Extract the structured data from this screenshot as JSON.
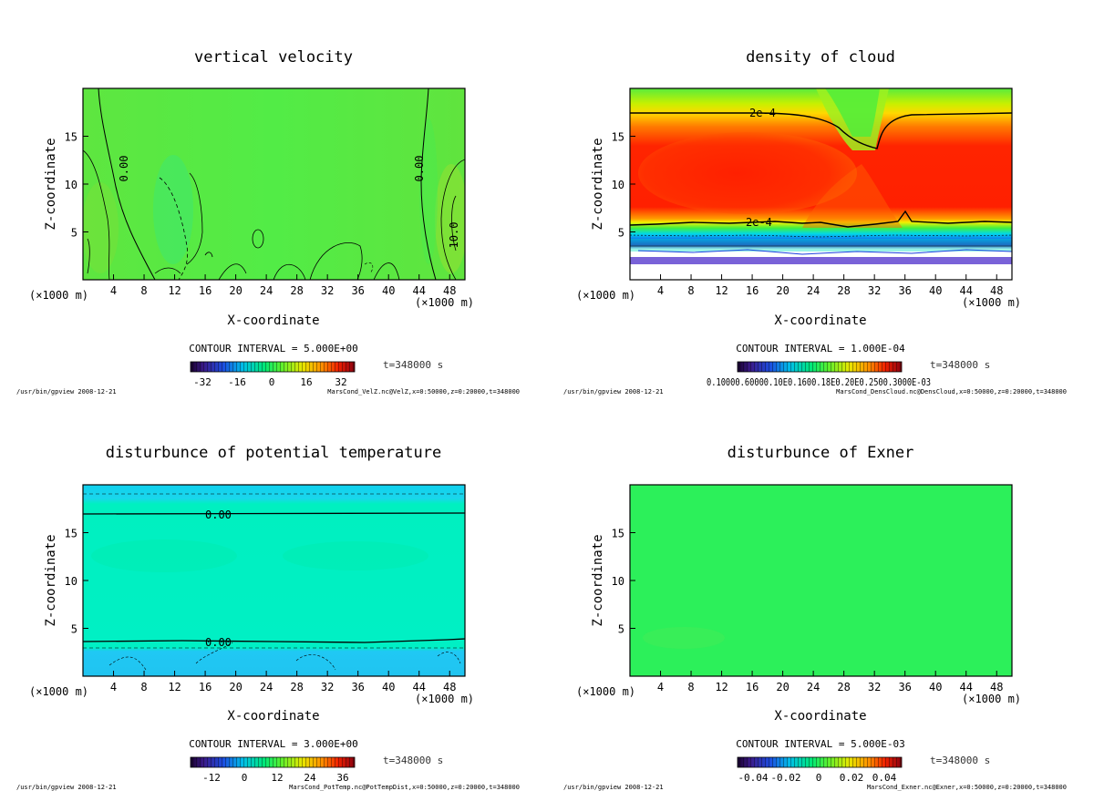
{
  "chart_data": [
    {
      "type": "heatmap",
      "id": "velz",
      "title": "vertical velocity",
      "xlabel": "X-coordinate",
      "ylabel": "Z-coordinate",
      "xunit": "(×1000 m)",
      "xlim": [
        0,
        50
      ],
      "ylim": [
        0,
        20
      ],
      "xticks": [
        4,
        8,
        12,
        16,
        20,
        24,
        28,
        32,
        36,
        40,
        44,
        48
      ],
      "yticks": [
        5,
        10,
        15
      ],
      "contour_interval": "CONTOUR INTERVAL = 5.000E+00",
      "time_label": "t=348000 s",
      "colorbar_ticks": [
        "-32",
        "-16",
        "0",
        "16",
        "32"
      ],
      "contour_labels": [
        "0.00",
        "0.00",
        "10.0"
      ],
      "footer_left": "/usr/bin/gpview  2008-12-21",
      "footer_right": "MarsCond_VelZ.nc@VelZ,x=0:50000,z=0:20000,t=348000"
    },
    {
      "type": "heatmap",
      "id": "dens",
      "title": "density of cloud",
      "xlabel": "X-coordinate",
      "ylabel": "Z-coordinate",
      "xunit": "(×1000 m)",
      "xlim": [
        0,
        50
      ],
      "ylim": [
        0,
        20
      ],
      "xticks": [
        4,
        8,
        12,
        16,
        20,
        24,
        28,
        32,
        36,
        40,
        44,
        48
      ],
      "yticks": [
        5,
        10,
        15
      ],
      "contour_interval": "CONTOUR INTERVAL = 1.000E-04",
      "time_label": "t=348000 s",
      "colorbar_label_raw": "0.10000.60000.10E0.1600.18E0.20E0.2500.3000E-03",
      "contour_labels": [
        "2e-4",
        "2e-4"
      ],
      "footer_left": "/usr/bin/gpview  2008-12-21",
      "footer_right": "MarsCond_DensCloud.nc@DensCloud,x=0:50000,z=0:20000,t=348000"
    },
    {
      "type": "heatmap",
      "id": "pot",
      "title": "disturbunce of potential temperature",
      "xlabel": "X-coordinate",
      "ylabel": "Z-coordinate",
      "xunit": "(×1000 m)",
      "xlim": [
        0,
        50
      ],
      "ylim": [
        0,
        20
      ],
      "xticks": [
        4,
        8,
        12,
        16,
        20,
        24,
        28,
        32,
        36,
        40,
        44,
        48
      ],
      "yticks": [
        5,
        10,
        15
      ],
      "contour_interval": "CONTOUR INTERVAL = 3.000E+00",
      "time_label": "t=348000 s",
      "colorbar_ticks": [
        "-12",
        "0",
        "12",
        "24",
        "36"
      ],
      "contour_labels": [
        "0.00",
        "0.00"
      ],
      "footer_left": "/usr/bin/gpview  2008-12-21",
      "footer_right": "MarsCond_PotTemp.nc@PotTempDist,x=0:50000,z=0:20000,t=348000"
    },
    {
      "type": "heatmap",
      "id": "exner",
      "title": "disturbunce of Exner",
      "xlabel": "X-coordinate",
      "ylabel": "Z-coordinate",
      "xunit": "(×1000 m)",
      "xlim": [
        0,
        50
      ],
      "ylim": [
        0,
        20
      ],
      "xticks": [
        4,
        8,
        12,
        16,
        20,
        24,
        28,
        32,
        36,
        40,
        44,
        48
      ],
      "yticks": [
        5,
        10,
        15
      ],
      "contour_interval": "CONTOUR INTERVAL = 5.000E-03",
      "time_label": "t=348000 s",
      "colorbar_ticks": [
        "-0.04",
        "-0.02",
        "0",
        "0.02",
        "0.04"
      ],
      "contour_labels": [],
      "footer_left": "/usr/bin/gpview  2008-12-21",
      "footer_right": "MarsCond_Exner.nc@Exner,x=0:50000,z=0:20000,t=348000"
    }
  ],
  "colors": {
    "green_field": "#4cf04c",
    "cyan_field": "#00f0b8",
    "blue_band": "#1ec8f0",
    "red_core": "#ff2a00",
    "yellow_edge": "#f8f000"
  }
}
